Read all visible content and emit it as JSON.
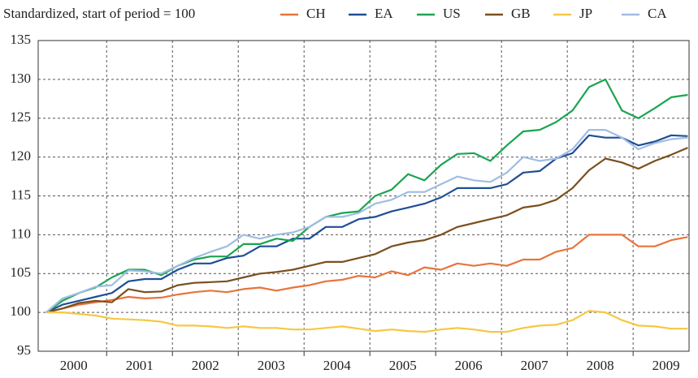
{
  "chart_data": {
    "type": "line",
    "title": "Standardized, start of period = 100",
    "x": [
      2000.08,
      2000.33,
      2000.58,
      2000.83,
      2001.08,
      2001.33,
      2001.58,
      2001.83,
      2002.08,
      2002.33,
      2002.58,
      2002.83,
      2003.08,
      2003.33,
      2003.58,
      2003.83,
      2004.08,
      2004.33,
      2004.58,
      2004.83,
      2005.08,
      2005.33,
      2005.58,
      2005.83,
      2006.08,
      2006.33,
      2006.58,
      2006.83,
      2007.08,
      2007.33,
      2007.58,
      2007.83,
      2008.08,
      2008.33,
      2008.58,
      2008.83,
      2009.08,
      2009.33,
      2009.58,
      2009.83
    ],
    "series": [
      {
        "name": "CH",
        "color": "#e8743b",
        "values": [
          100,
          100.5,
          101,
          101.3,
          101.6,
          102,
          101.8,
          101.9,
          102.3,
          102.6,
          102.8,
          102.6,
          103,
          103.2,
          102.8,
          103.2,
          103.5,
          104,
          104.2,
          104.7,
          104.5,
          105.3,
          104.8,
          105.8,
          105.5,
          106.3,
          106,
          106.3,
          106,
          106.8,
          106.8,
          107.8,
          108.3,
          110,
          110,
          110,
          108.5,
          108.5,
          109.3,
          109.7
        ]
      },
      {
        "name": "EA",
        "color": "#1f4e96",
        "values": [
          100,
          101,
          101.5,
          102,
          102.5,
          104,
          104.3,
          104.3,
          105.5,
          106.3,
          106.3,
          107,
          107.3,
          108.5,
          108.5,
          109.5,
          109.5,
          111,
          111,
          112,
          112.3,
          113,
          113.5,
          114,
          114.8,
          116,
          116,
          116,
          116.5,
          118,
          118.2,
          119.8,
          120.5,
          122.8,
          122.5,
          122.5,
          121.5,
          122,
          122.8,
          122.7
        ]
      },
      {
        "name": "US",
        "color": "#1aa550",
        "values": [
          100,
          101.5,
          102.5,
          103.2,
          104.5,
          105.5,
          105.5,
          104.8,
          106,
          106.8,
          107.2,
          107.2,
          108.8,
          108.8,
          109.5,
          109.2,
          111,
          112.3,
          112.8,
          113,
          115,
          115.8,
          117.8,
          117,
          119,
          120.4,
          120.5,
          119.5,
          121.5,
          123.3,
          123.5,
          124.5,
          126,
          129,
          130,
          126,
          125,
          126.3,
          127.7,
          128
        ]
      },
      {
        "name": "GB",
        "color": "#7b4f1e",
        "values": [
          100,
          100.5,
          101.2,
          101.5,
          101.3,
          103,
          102.6,
          102.7,
          103.5,
          103.8,
          103.9,
          104,
          104.5,
          105,
          105.2,
          105.5,
          106,
          106.5,
          106.5,
          107,
          107.5,
          108.5,
          109,
          109.3,
          110,
          111,
          111.5,
          112,
          112.5,
          113.5,
          113.8,
          114.5,
          116,
          118.3,
          119.8,
          119.3,
          118.5,
          119.5,
          120.3,
          121.2
        ]
      },
      {
        "name": "JP",
        "color": "#f5c842",
        "values": [
          100,
          100,
          99.8,
          99.6,
          99.2,
          99.1,
          99,
          98.8,
          98.3,
          98.3,
          98.2,
          98,
          98.2,
          98,
          98,
          97.8,
          97.8,
          98,
          98.2,
          97.9,
          97.6,
          97.8,
          97.6,
          97.5,
          97.8,
          98,
          97.8,
          97.5,
          97.5,
          98,
          98.3,
          98.4,
          99,
          100.2,
          100,
          99,
          98.3,
          98.2,
          97.9,
          97.9
        ]
      },
      {
        "name": "CA",
        "color": "#9fbde3",
        "values": [
          100,
          101.8,
          102.5,
          103.3,
          103.5,
          105.4,
          105.3,
          105,
          106,
          107,
          107.8,
          108.5,
          110,
          109.5,
          110,
          110.3,
          111,
          112.3,
          112.3,
          112.8,
          114,
          114.5,
          115.5,
          115.5,
          116.5,
          117.5,
          117,
          116.8,
          118,
          120,
          119.5,
          119.8,
          121,
          123.5,
          123.5,
          122.5,
          121,
          121.8,
          122.3,
          122.5
        ]
      }
    ],
    "xlim": [
      1999.96,
      2009.85
    ],
    "xticks": [
      {
        "value": 2000.5,
        "label": "2000"
      },
      {
        "value": 2001.5,
        "label": "2001"
      },
      {
        "value": 2002.5,
        "label": "2002"
      },
      {
        "value": 2003.5,
        "label": "2003"
      },
      {
        "value": 2004.5,
        "label": "2004"
      },
      {
        "value": 2005.5,
        "label": "2005"
      },
      {
        "value": 2006.5,
        "label": "2006"
      },
      {
        "value": 2007.5,
        "label": "2007"
      },
      {
        "value": 2008.5,
        "label": "2008"
      },
      {
        "value": 2009.5,
        "label": "2009"
      }
    ],
    "xgrid": [
      2001,
      2002,
      2003,
      2004,
      2005,
      2006,
      2007,
      2008,
      2009
    ],
    "ylim": [
      95,
      135
    ],
    "yticks": [
      95,
      100,
      105,
      110,
      115,
      120,
      125,
      130,
      135
    ],
    "grid": true
  }
}
